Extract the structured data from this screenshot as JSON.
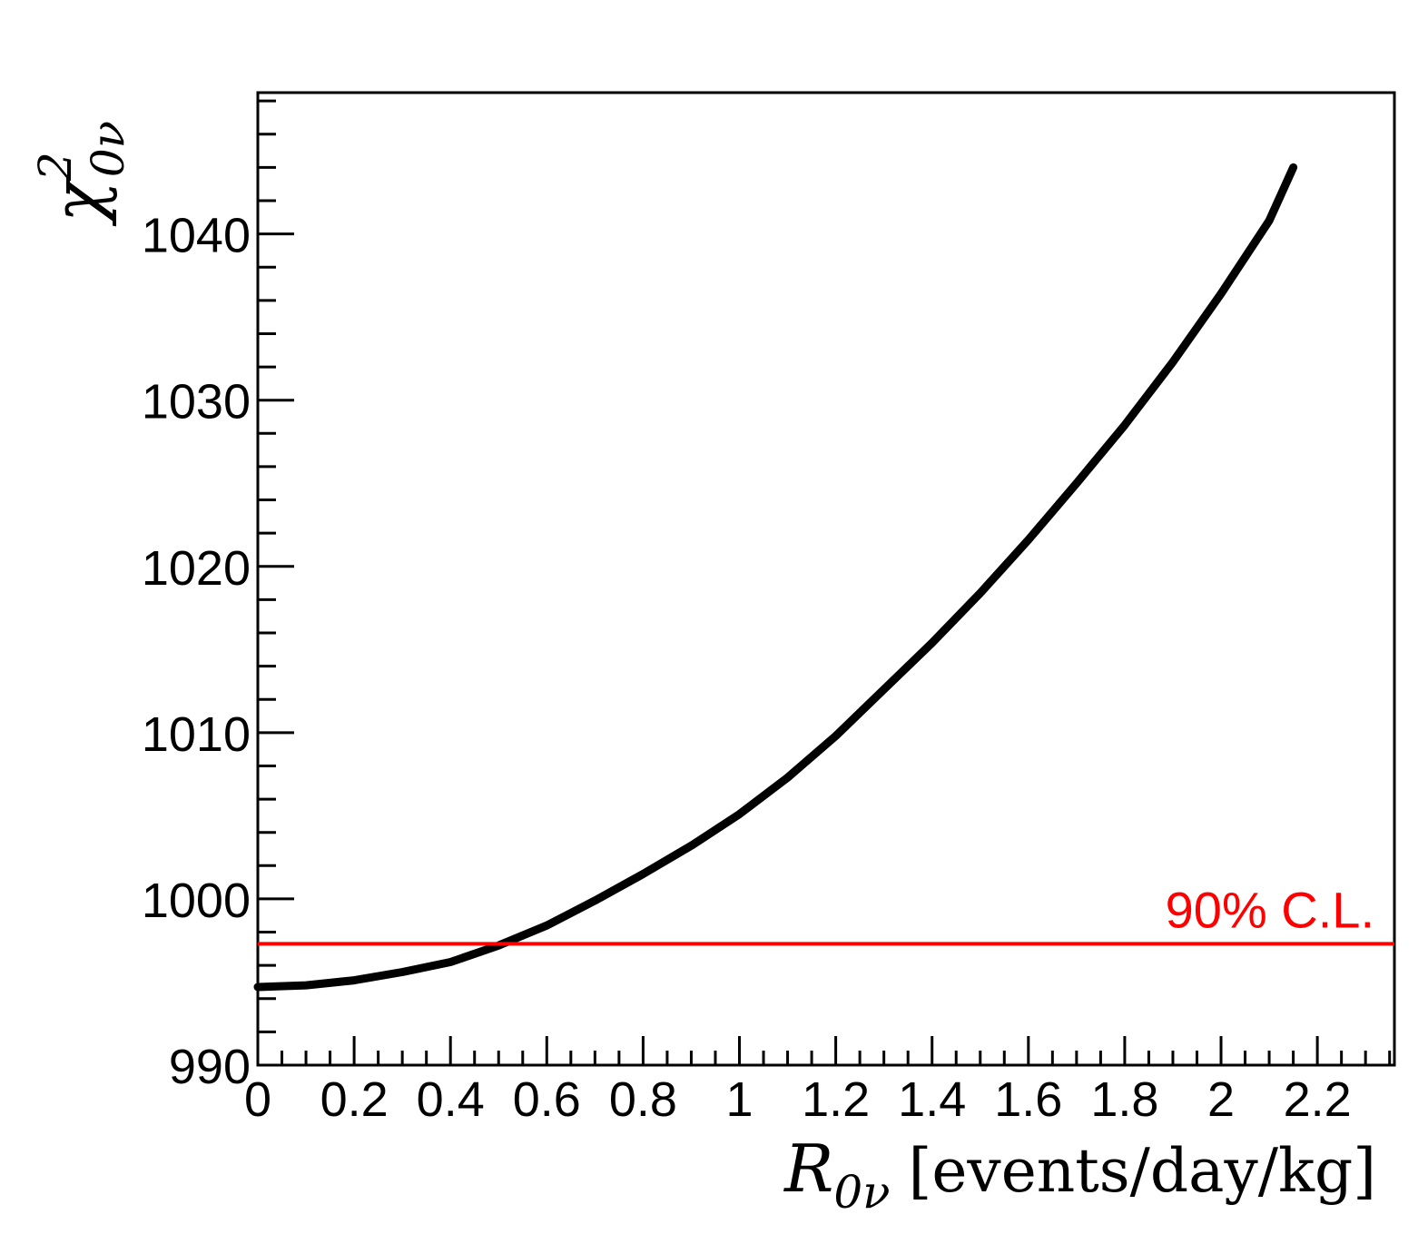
{
  "chart_data": {
    "type": "line",
    "title": "",
    "xlabel": {
      "symbol": "R",
      "subscript": "0ν",
      "unit": "[events/day/kg]"
    },
    "ylabel": {
      "symbol": "χ",
      "superscript": "2",
      "subscript": "0ν"
    },
    "xlim": [
      0,
      2.36
    ],
    "ylim": [
      990,
      1048.5
    ],
    "x_ticks": [
      0,
      0.2,
      0.4,
      0.6,
      0.8,
      1,
      1.2,
      1.4,
      1.6,
      1.8,
      2,
      2.2
    ],
    "x_tick_labels": [
      "0",
      "0.2",
      "0.4",
      "0.6",
      "0.8",
      "1",
      "1.2",
      "1.4",
      "1.6",
      "1.8",
      "2",
      "2.2"
    ],
    "y_ticks": [
      990,
      1000,
      1010,
      1020,
      1030,
      1040
    ],
    "y_tick_labels": [
      "990",
      "1000",
      "1010",
      "1020",
      "1030",
      "1040"
    ],
    "grid": false,
    "series": [
      {
        "color": "#000000",
        "x": [
          0,
          0.1,
          0.2,
          0.3,
          0.4,
          0.5,
          0.6,
          0.7,
          0.8,
          0.9,
          1.0,
          1.1,
          1.2,
          1.3,
          1.4,
          1.5,
          1.6,
          1.7,
          1.8,
          1.9,
          2.0,
          2.1,
          2.15
        ],
        "y": [
          994.7,
          994.8,
          995.1,
          995.6,
          996.2,
          997.2,
          998.4,
          999.9,
          1001.5,
          1003.2,
          1005.1,
          1007.3,
          1009.8,
          1012.6,
          1015.4,
          1018.4,
          1021.6,
          1025.0,
          1028.5,
          1032.3,
          1036.4,
          1040.8,
          1044.0
        ]
      }
    ],
    "reference_lines": [
      {
        "orientation": "horizontal",
        "y": 997.3,
        "color": "#ff0000",
        "label": "90% C.L."
      }
    ]
  }
}
